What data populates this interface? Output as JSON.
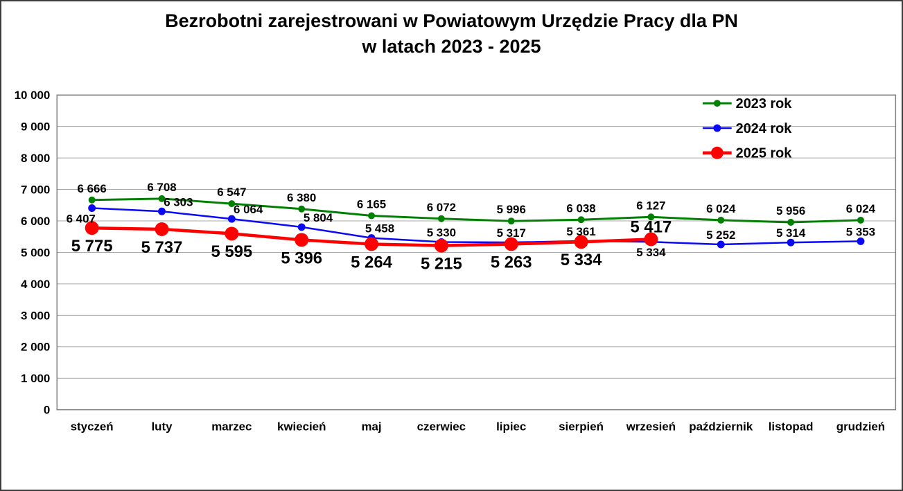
{
  "window": {
    "background": "#FFFFFF",
    "border_color": "#3C3C3C",
    "text_color": "#000000"
  },
  "chart_data": {
    "type": "line",
    "title_line1": "Bezrobotni zarejestrowani w Powiatowym Urzędzie Pracy dla PN",
    "title_line2": "w latach 2023 - 2025",
    "categories": [
      "styczeń",
      "luty",
      "marzec",
      "kwiecień",
      "maj",
      "czerwiec",
      "lipiec",
      "sierpień",
      "wrzesień",
      "październik",
      "listopad",
      "grudzień"
    ],
    "ylim": [
      0,
      10000
    ],
    "ytick_step": 1000,
    "ytick_labels": [
      "0",
      "1 000",
      "2 000",
      "3 000",
      "4 000",
      "5 000",
      "6 000",
      "7 000",
      "8 000",
      "9 000",
      "10 000"
    ],
    "grid": true,
    "gridline_color": "#A9A9A9",
    "axis_color": "#808080",
    "legend_position": "top-right",
    "series": [
      {
        "name": "2023 rok",
        "color": "#008000",
        "values": [
          6666,
          6708,
          6547,
          6380,
          6165,
          6072,
          5996,
          6038,
          6127,
          6024,
          5956,
          6024
        ],
        "label_side": [
          "above",
          "above",
          "above",
          "above",
          "above",
          "above",
          "above",
          "above",
          "above",
          "above",
          "above",
          "above"
        ]
      },
      {
        "name": "2024 rok",
        "color": "#0909F5",
        "values": [
          6407,
          6303,
          6064,
          5804,
          5458,
          5330,
          5317,
          5361,
          5334,
          5252,
          5314,
          5353
        ],
        "label_side": [
          "below",
          "above",
          "above",
          "above",
          "above",
          "above",
          "above",
          "above",
          "below",
          "above",
          "above",
          "above"
        ]
      },
      {
        "name": "2025 rok",
        "color": "#FF0000",
        "values": [
          5775,
          5737,
          5595,
          5396,
          5264,
          5215,
          5263,
          5334,
          5417
        ],
        "label_side": [
          "below",
          "below",
          "below",
          "below",
          "below",
          "below",
          "below",
          "below",
          "above"
        ]
      }
    ]
  }
}
